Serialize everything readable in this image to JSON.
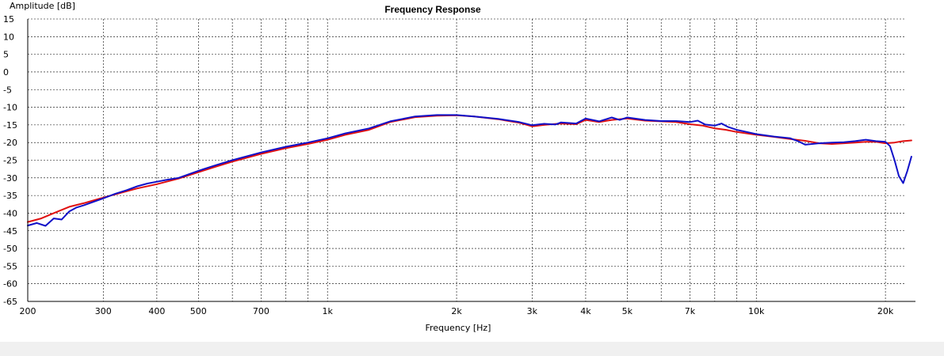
{
  "chart_data": {
    "type": "line",
    "title": "Frequency Response",
    "xlabel": "Frequency [Hz]",
    "ylabel": "Amplitude [dB]",
    "x_scale": "log",
    "xlim": [
      200,
      23500
    ],
    "ylim": [
      -65,
      15
    ],
    "grid": true,
    "x_major_ticks": [
      200,
      300,
      400,
      500,
      700,
      1000,
      2000,
      3000,
      4000,
      5000,
      7000,
      10000,
      20000
    ],
    "x_tick_labels": [
      "200",
      "300",
      "400",
      "500",
      "700",
      "1k",
      "2k",
      "3k",
      "4k",
      "5k",
      "7k",
      "10k",
      "20k"
    ],
    "x_minor_grid": [
      600,
      800,
      900,
      6000,
      8000,
      9000
    ],
    "y_ticks": [
      15,
      10,
      5,
      0,
      -5,
      -10,
      -15,
      -20,
      -25,
      -30,
      -35,
      -40,
      -45,
      -50,
      -55,
      -60,
      -65
    ],
    "y_tick_labels": [
      "15",
      "10",
      "5",
      "0",
      "-5",
      "-10",
      "-15",
      "-20",
      "-25",
      "-30",
      "-35",
      "-40",
      "-45",
      "-50",
      "-55",
      "-60",
      "-65"
    ],
    "series": [
      {
        "color": "#e01010",
        "points": [
          [
            200,
            -42.5
          ],
          [
            215,
            -41.5
          ],
          [
            230,
            -40
          ],
          [
            250,
            -38.2
          ],
          [
            270,
            -37.2
          ],
          [
            300,
            -35.6
          ],
          [
            330,
            -34.2
          ],
          [
            360,
            -33
          ],
          [
            400,
            -31.8
          ],
          [
            450,
            -30.2
          ],
          [
            500,
            -28.4
          ],
          [
            550,
            -26.8
          ],
          [
            600,
            -25.4
          ],
          [
            700,
            -23.2
          ],
          [
            800,
            -21.6
          ],
          [
            900,
            -20.4
          ],
          [
            1000,
            -19.2
          ],
          [
            1100,
            -17.8
          ],
          [
            1250,
            -16.4
          ],
          [
            1400,
            -14.2
          ],
          [
            1600,
            -12.8
          ],
          [
            1800,
            -12.4
          ],
          [
            2000,
            -12.3
          ],
          [
            2200,
            -12.6
          ],
          [
            2500,
            -13.4
          ],
          [
            2800,
            -14.4
          ],
          [
            3000,
            -15.4
          ],
          [
            3200,
            -15.0
          ],
          [
            3500,
            -14.6
          ],
          [
            3800,
            -14.8
          ],
          [
            4000,
            -13.6
          ],
          [
            4300,
            -14.2
          ],
          [
            4600,
            -13.6
          ],
          [
            5000,
            -13.2
          ],
          [
            5500,
            -13.8
          ],
          [
            6000,
            -14.0
          ],
          [
            6500,
            -14.2
          ],
          [
            7000,
            -14.8
          ],
          [
            7500,
            -15.2
          ],
          [
            8000,
            -16.0
          ],
          [
            8500,
            -16.4
          ],
          [
            9000,
            -17.0
          ],
          [
            9500,
            -17.4
          ],
          [
            10000,
            -17.8
          ],
          [
            11000,
            -18.4
          ],
          [
            12000,
            -19.0
          ],
          [
            13000,
            -19.5
          ],
          [
            14000,
            -20.2
          ],
          [
            15000,
            -20.4
          ],
          [
            16000,
            -20.2
          ],
          [
            17000,
            -20.0
          ],
          [
            18000,
            -19.8
          ],
          [
            19000,
            -19.8
          ],
          [
            20000,
            -20.2
          ],
          [
            21000,
            -20.0
          ],
          [
            22000,
            -19.6
          ],
          [
            23000,
            -19.4
          ]
        ]
      },
      {
        "color": "#1010c8",
        "points": [
          [
            200,
            -43.5
          ],
          [
            210,
            -42.8
          ],
          [
            220,
            -43.6
          ],
          [
            230,
            -41.5
          ],
          [
            240,
            -41.8
          ],
          [
            250,
            -39.5
          ],
          [
            260,
            -38.4
          ],
          [
            270,
            -37.8
          ],
          [
            300,
            -35.8
          ],
          [
            320,
            -34.5
          ],
          [
            340,
            -33.5
          ],
          [
            360,
            -32.4
          ],
          [
            380,
            -31.6
          ],
          [
            400,
            -31.1
          ],
          [
            420,
            -30.6
          ],
          [
            450,
            -30.0
          ],
          [
            500,
            -28.0
          ],
          [
            550,
            -26.4
          ],
          [
            600,
            -25.0
          ],
          [
            700,
            -22.8
          ],
          [
            800,
            -21.2
          ],
          [
            900,
            -20.0
          ],
          [
            1000,
            -18.8
          ],
          [
            1100,
            -17.4
          ],
          [
            1250,
            -16.0
          ],
          [
            1400,
            -14.0
          ],
          [
            1600,
            -12.6
          ],
          [
            1800,
            -12.2
          ],
          [
            2000,
            -12.2
          ],
          [
            2200,
            -12.6
          ],
          [
            2500,
            -13.3
          ],
          [
            2800,
            -14.2
          ],
          [
            3000,
            -15.1
          ],
          [
            3200,
            -14.7
          ],
          [
            3400,
            -14.9
          ],
          [
            3500,
            -14.3
          ],
          [
            3800,
            -14.6
          ],
          [
            4000,
            -13.2
          ],
          [
            4300,
            -14.0
          ],
          [
            4600,
            -12.9
          ],
          [
            4800,
            -13.6
          ],
          [
            5000,
            -12.9
          ],
          [
            5500,
            -13.6
          ],
          [
            6000,
            -13.9
          ],
          [
            6500,
            -13.9
          ],
          [
            7000,
            -14.2
          ],
          [
            7300,
            -13.8
          ],
          [
            7600,
            -14.9
          ],
          [
            8000,
            -15.2
          ],
          [
            8300,
            -14.6
          ],
          [
            8600,
            -15.6
          ],
          [
            9000,
            -16.4
          ],
          [
            9500,
            -17.0
          ],
          [
            10000,
            -17.6
          ],
          [
            11000,
            -18.3
          ],
          [
            12000,
            -18.8
          ],
          [
            12500,
            -19.6
          ],
          [
            13000,
            -20.6
          ],
          [
            14000,
            -20.2
          ],
          [
            15000,
            -20.0
          ],
          [
            16000,
            -19.9
          ],
          [
            17000,
            -19.6
          ],
          [
            18000,
            -19.2
          ],
          [
            19000,
            -19.6
          ],
          [
            20000,
            -19.8
          ],
          [
            20500,
            -21.0
          ],
          [
            21000,
            -25.0
          ],
          [
            21500,
            -29.5
          ],
          [
            22000,
            -31.5
          ],
          [
            22500,
            -28.0
          ],
          [
            23000,
            -24.0
          ]
        ]
      }
    ]
  }
}
